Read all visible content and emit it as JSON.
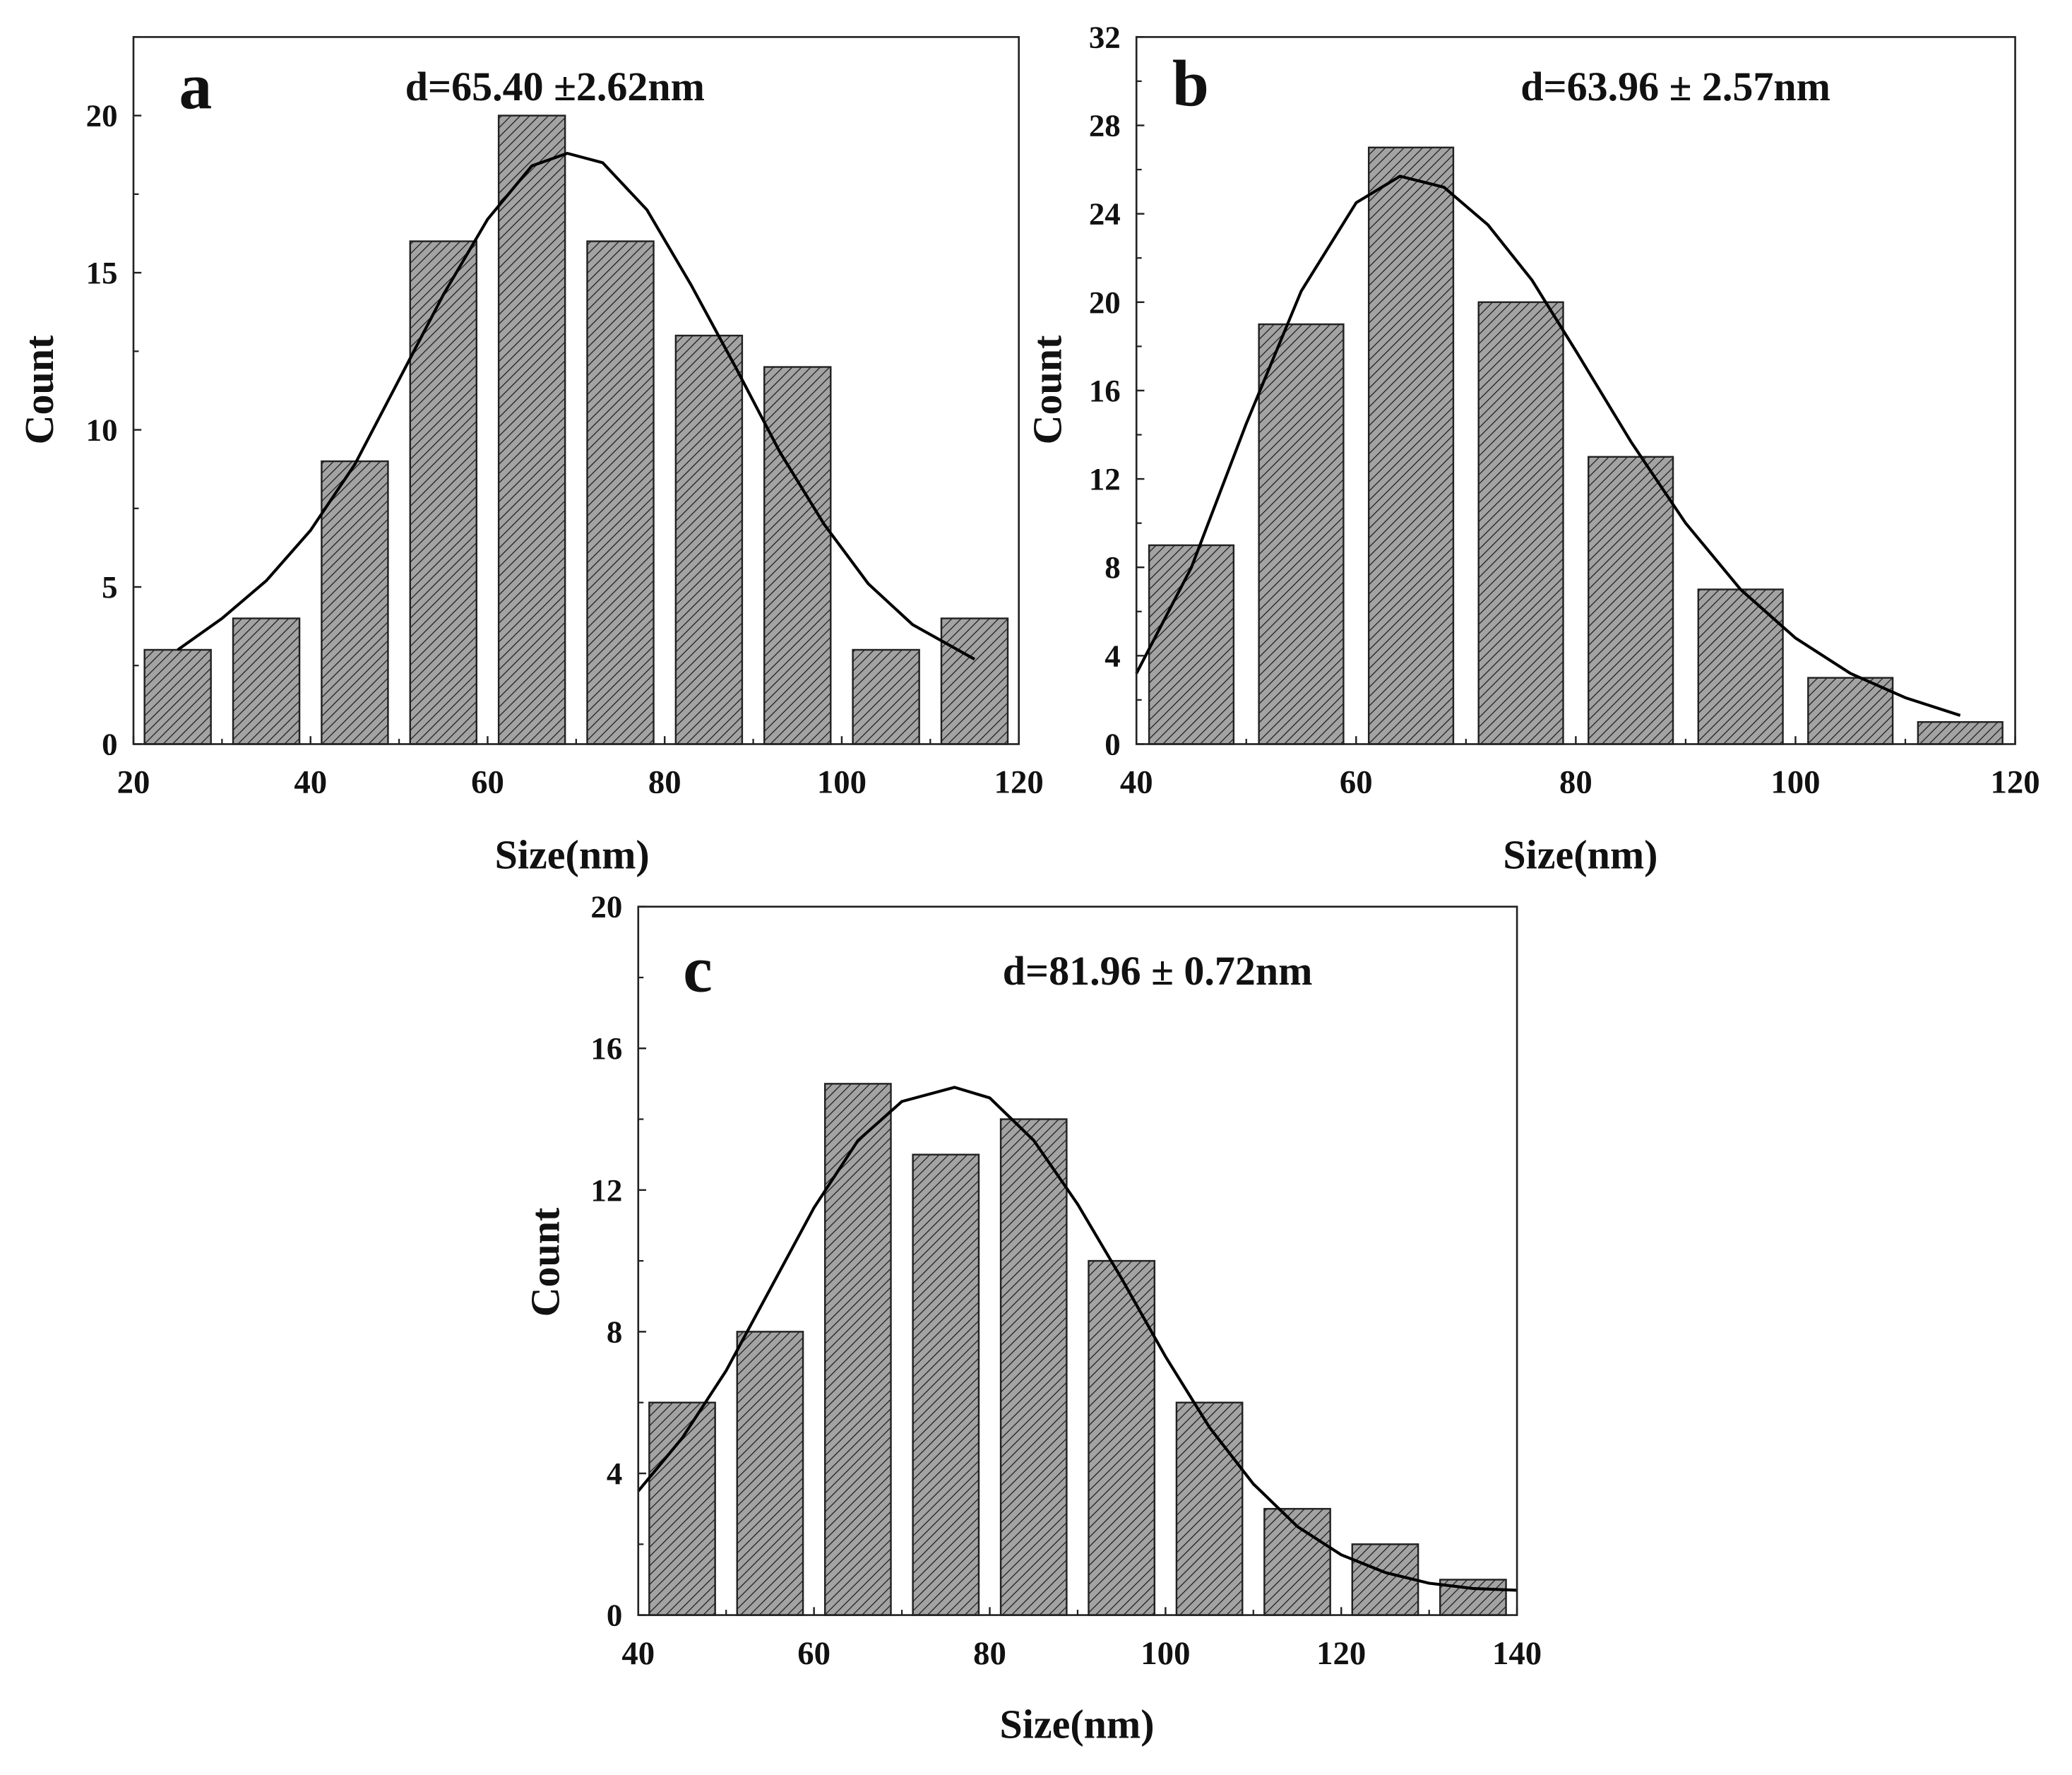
{
  "chart_data": [
    {
      "type": "bar",
      "panel_label": "a",
      "title": "d=65.40 ±2.62nm",
      "xlabel": "Size(nm)",
      "ylabel": "Count",
      "xlim": [
        20,
        120
      ],
      "ylim": [
        0,
        22.5
      ],
      "xticks": [
        20,
        40,
        60,
        80,
        100,
        120
      ],
      "yticks": [
        0,
        5,
        10,
        15,
        20
      ],
      "bin_width": 7.5,
      "x": [
        25,
        35,
        45,
        55,
        65,
        75,
        85,
        95,
        105,
        115
      ],
      "values": [
        3,
        4,
        9,
        16,
        20,
        16,
        13,
        12,
        3,
        4
      ],
      "fit_curve": [
        [
          25,
          3
        ],
        [
          30,
          4
        ],
        [
          35,
          5.2
        ],
        [
          40,
          6.8
        ],
        [
          45,
          8.9
        ],
        [
          50,
          11.6
        ],
        [
          55,
          14.3
        ],
        [
          60,
          16.7
        ],
        [
          65,
          18.4
        ],
        [
          69,
          18.8
        ],
        [
          73,
          18.5
        ],
        [
          78,
          17
        ],
        [
          83,
          14.6
        ],
        [
          88,
          12
        ],
        [
          93,
          9.3
        ],
        [
          98,
          7
        ],
        [
          103,
          5.1
        ],
        [
          108,
          3.8
        ],
        [
          115,
          2.7
        ]
      ]
    },
    {
      "type": "bar",
      "panel_label": "b",
      "title": "d=63.96 ± 2.57nm",
      "xlabel": "Size(nm)",
      "ylabel": "Count",
      "xlim": [
        40,
        120
      ],
      "ylim": [
        0,
        32
      ],
      "xticks": [
        40,
        60,
        80,
        100,
        120
      ],
      "yticks": [
        0,
        4,
        8,
        12,
        16,
        20,
        24,
        28,
        32
      ],
      "bin_width": 7.7,
      "x": [
        45,
        55,
        65,
        75,
        85,
        95,
        105,
        115
      ],
      "values": [
        9,
        19,
        27,
        20,
        13,
        7,
        3,
        1
      ],
      "fit_curve": [
        [
          40,
          3.2
        ],
        [
          45,
          8
        ],
        [
          50,
          14.5
        ],
        [
          55,
          20.5
        ],
        [
          60,
          24.5
        ],
        [
          64,
          25.7
        ],
        [
          68,
          25.2
        ],
        [
          72,
          23.5
        ],
        [
          76,
          21
        ],
        [
          80,
          17.8
        ],
        [
          85,
          13.7
        ],
        [
          90,
          10
        ],
        [
          95,
          7
        ],
        [
          100,
          4.8
        ],
        [
          105,
          3.2
        ],
        [
          110,
          2.1
        ],
        [
          115,
          1.3
        ]
      ]
    },
    {
      "type": "bar",
      "panel_label": "c",
      "title": "d=81.96 ± 0.72nm",
      "xlabel": "Size(nm)",
      "ylabel": "Count",
      "xlim": [
        40,
        140
      ],
      "ylim": [
        0,
        20
      ],
      "xticks": [
        40,
        60,
        80,
        100,
        120,
        140
      ],
      "yticks": [
        0,
        4,
        8,
        12,
        16,
        20
      ],
      "bin_width": 7.5,
      "x": [
        45,
        55,
        65,
        75,
        85,
        95,
        105,
        115,
        125,
        135
      ],
      "values": [
        6,
        8,
        15,
        13,
        14,
        10,
        6,
        3,
        2,
        1
      ],
      "fit_curve": [
        [
          40,
          3.5
        ],
        [
          45,
          5
        ],
        [
          50,
          6.9
        ],
        [
          55,
          9.2
        ],
        [
          60,
          11.5
        ],
        [
          65,
          13.4
        ],
        [
          70,
          14.5
        ],
        [
          76,
          14.9
        ],
        [
          80,
          14.6
        ],
        [
          85,
          13.4
        ],
        [
          90,
          11.6
        ],
        [
          95,
          9.5
        ],
        [
          100,
          7.3
        ],
        [
          105,
          5.3
        ],
        [
          110,
          3.7
        ],
        [
          115,
          2.5
        ],
        [
          120,
          1.7
        ],
        [
          125,
          1.2
        ],
        [
          130,
          0.9
        ],
        [
          135,
          0.75
        ],
        [
          140,
          0.7
        ]
      ]
    }
  ]
}
